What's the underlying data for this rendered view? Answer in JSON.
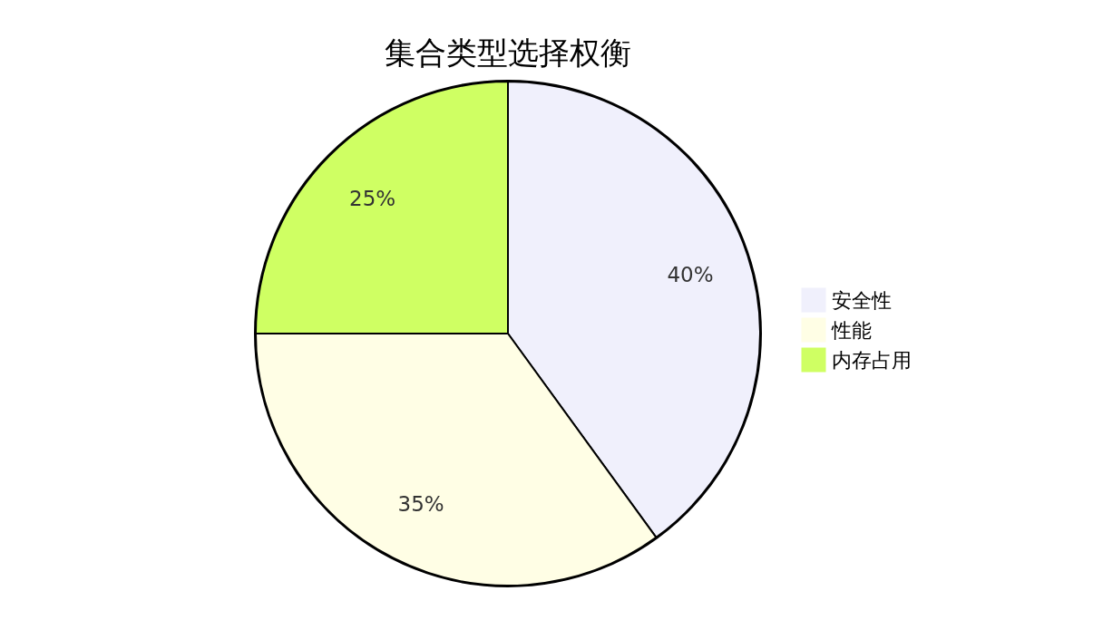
{
  "chart_data": {
    "type": "pie",
    "title": "集合类型选择权衡",
    "categories": [
      "安全性",
      "性能",
      "内存占用"
    ],
    "values": [
      40,
      35,
      25
    ],
    "colors": [
      "#f0f0fc",
      "#fffee5",
      "#cfff63"
    ],
    "value_labels": [
      "40%",
      "35%",
      "25%"
    ],
    "legend": "right"
  }
}
